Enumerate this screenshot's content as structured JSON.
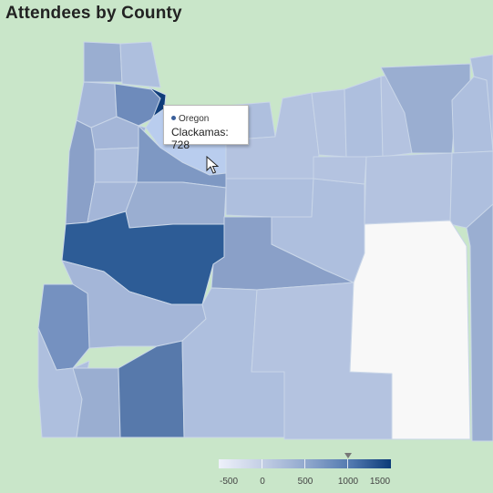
{
  "title": "Attendees by County",
  "tooltip": {
    "series": "Oregon",
    "county": "Clackamas",
    "value": 728,
    "text": "Clackamas: 728",
    "series_color": "#3a5f9a"
  },
  "legend": {
    "min": -500,
    "max": 1500,
    "ticks": [
      "-500",
      "0",
      "500",
      "1000",
      "1500"
    ],
    "marker_value": 1000,
    "colors": [
      "#eef1fa",
      "#c4cfe5",
      "#8ea6cc",
      "#4e76ad",
      "#0c3b78"
    ]
  },
  "colors": {
    "background": "#c9e6c9",
    "highlight": "#b9cdee",
    "no_data": "#f8f8f8"
  }
}
